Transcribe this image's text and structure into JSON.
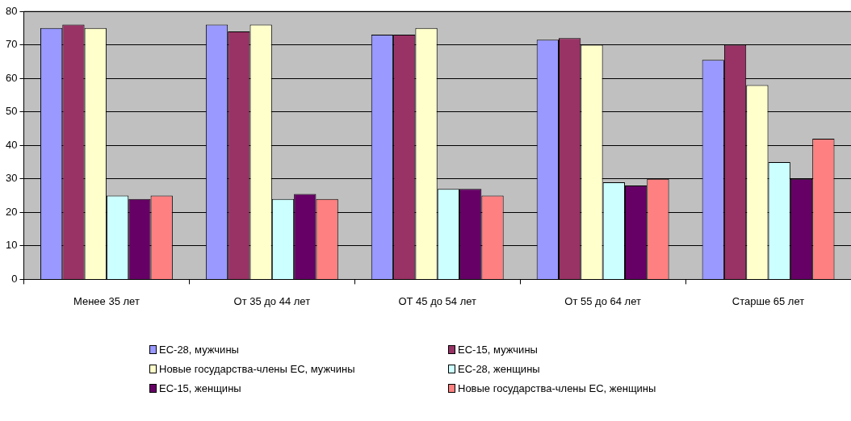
{
  "chart_data": {
    "type": "bar",
    "categories": [
      "Менее 35 лет",
      "От 35 до 44 лет",
      "ОТ 45 до 54 лет",
      "От 55 до 64 лет",
      "Старше 65 лет"
    ],
    "series": [
      {
        "name": "ЕС-28, мужчины",
        "color": "#9999ff",
        "values": [
          75,
          76,
          73,
          71.5,
          65.5
        ]
      },
      {
        "name": "ЕС-15, мужчины",
        "color": "#993366",
        "values": [
          76,
          74,
          73,
          72,
          70
        ]
      },
      {
        "name": "Новые государства-члены ЕС, мужчины",
        "color": "#ffffcc",
        "values": [
          75,
          76,
          75,
          70,
          58
        ]
      },
      {
        "name": "ЕС-28, женщины",
        "color": "#ccffff",
        "values": [
          25,
          24,
          27,
          29,
          35
        ]
      },
      {
        "name": "ЕС-15, женщины",
        "color": "#660066",
        "values": [
          24,
          25.5,
          27,
          28,
          30
        ]
      },
      {
        "name": "Новые государства-члены ЕС, женщины",
        "color": "#ff8080",
        "values": [
          25,
          24,
          25,
          30,
          42
        ]
      }
    ],
    "ylim": [
      0,
      80
    ],
    "yticks": [
      0,
      10,
      20,
      30,
      40,
      50,
      60,
      70,
      80
    ],
    "grid": "y",
    "legend": "bottom"
  }
}
